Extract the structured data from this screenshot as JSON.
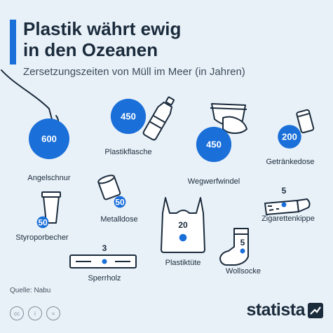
{
  "header": {
    "title_line1": "Plastik währt ewig",
    "title_line2": "in den Ozeanen",
    "subtitle": "Zersetzungszeiten von Müll im Meer (in Jahren)"
  },
  "source": "Quelle: Nabu",
  "license_icons": [
    "cc-icon",
    "info-icon",
    "equals-icon"
  ],
  "brand": {
    "logo_text": "statista"
  },
  "colors": {
    "accent": "#1a6fd9",
    "bubble": "#1a6fd9",
    "dark": "#1a2b3c",
    "background": "#e9f1f8"
  },
  "chart_data": {
    "type": "bubble",
    "title": "Plastik währt ewig in den Ozeanen",
    "subtitle": "Zersetzungszeiten von Müll im Meer (in Jahren)",
    "unit": "Jahre",
    "items": [
      {
        "label": "Angelschnur",
        "value": 600,
        "icon": "fishing-hook-icon"
      },
      {
        "label": "Plastikflasche",
        "value": 450,
        "icon": "plastic-bottle-icon"
      },
      {
        "label": "Wegwerfwindel",
        "value": 450,
        "icon": "diaper-icon"
      },
      {
        "label": "Getränkedose",
        "value": 200,
        "icon": "drink-can-icon"
      },
      {
        "label": "Styroporbecher",
        "value": 50,
        "icon": "foam-cup-icon"
      },
      {
        "label": "Metalldose",
        "value": 50,
        "icon": "metal-can-icon"
      },
      {
        "label": "Plastiktüte",
        "value": 20,
        "icon": "plastic-bag-icon"
      },
      {
        "label": "Zigarettenkippe",
        "value": 5,
        "icon": "cigarette-icon"
      },
      {
        "label": "Wollsocke",
        "value": 5,
        "icon": "sock-icon"
      },
      {
        "label": "Sperrholz",
        "value": 3,
        "icon": "plywood-icon"
      }
    ]
  }
}
